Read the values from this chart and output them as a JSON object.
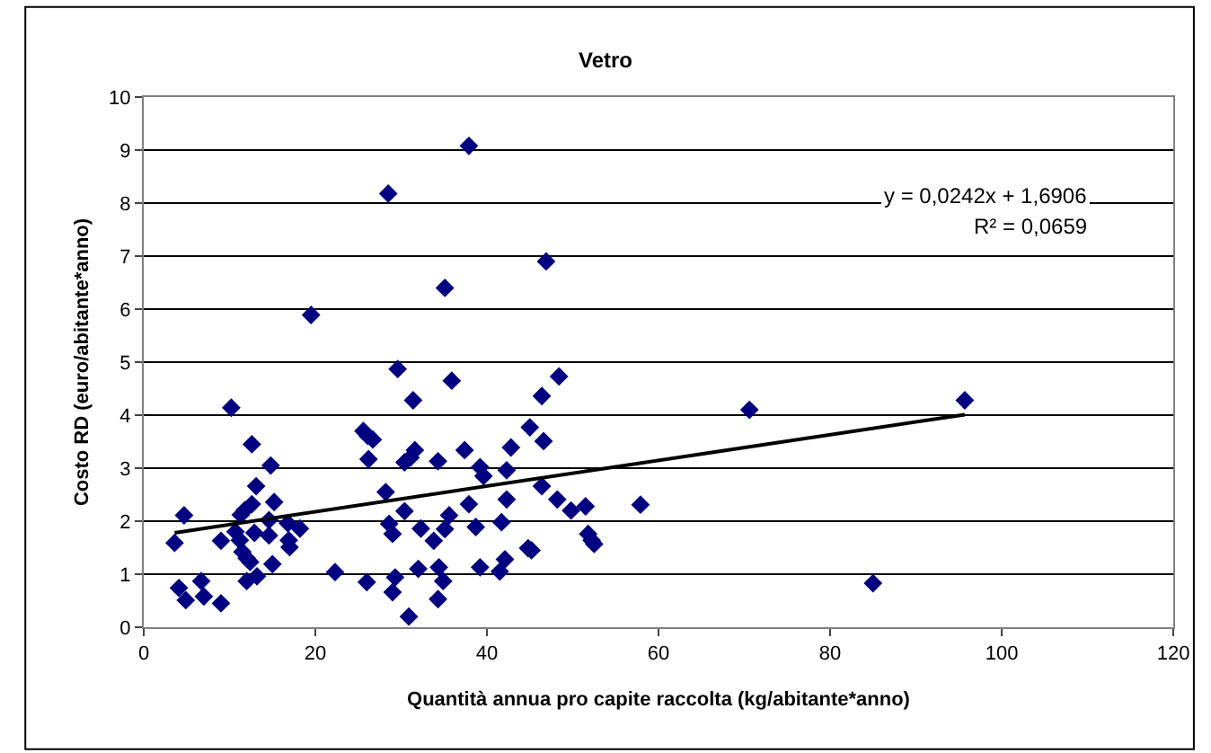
{
  "chart_data": {
    "type": "scatter",
    "title": "Vetro",
    "xlabel": "Quantità annua pro capite raccolta (kg/abitante*anno)",
    "ylabel": "Costo RD (euro/abitante*anno)",
    "xlim": [
      0,
      120
    ],
    "xticks": [
      0,
      20,
      40,
      60,
      80,
      100,
      120
    ],
    "ylim": [
      0,
      10
    ],
    "yticks": [
      0,
      1,
      2,
      3,
      4,
      5,
      6,
      7,
      8,
      9,
      10
    ],
    "grid": "y",
    "marker": "diamond",
    "annotations": [
      "y = 0,0242x + 1,6906",
      "R² = 0,0659"
    ],
    "series": [
      {
        "color": "#000080",
        "x": [
          3.6,
          4.7,
          4.1,
          4.9,
          6.7,
          7.0,
          9.0,
          9.0,
          10.2,
          10.7,
          11.2,
          11.3,
          11.8,
          11.5,
          12.0,
          12.4,
          12.0,
          12.6,
          12.6,
          12.9,
          13.1,
          13.2,
          14.6,
          14.8,
          14.6,
          15.2,
          15.0,
          16.8,
          16.9,
          17.0,
          18.2,
          19.5,
          22.3,
          25.6,
          26.1,
          26.7,
          26.2,
          26.0,
          28.2,
          28.5,
          28.6,
          29.0,
          29.3,
          29.0,
          29.6,
          37.9,
          46.9,
          35.1,
          35.9,
          31.4,
          30.4,
          31.1,
          31.6,
          30.4,
          32.3,
          33.8,
          32.0,
          30.9,
          34.3,
          34.4,
          34.9,
          34.3,
          35.1,
          35.6,
          37.4,
          37.9,
          38.7,
          39.2,
          39.2,
          39.6,
          42.3,
          42.3,
          41.7,
          41.5,
          42.1,
          42.8,
          45.0,
          46.6,
          46.4,
          48.4,
          46.4,
          48.2,
          49.8,
          51.5,
          51.8,
          52.2,
          52.5,
          44.8,
          45.2,
          57.9,
          70.6,
          85.0,
          95.7
        ],
        "values": [
          1.59,
          2.11,
          0.74,
          0.51,
          0.87,
          0.58,
          0.45,
          1.63,
          4.14,
          1.8,
          1.64,
          2.12,
          2.21,
          1.42,
          1.3,
          1.23,
          0.87,
          3.45,
          2.32,
          1.78,
          2.66,
          0.96,
          2.02,
          3.05,
          1.73,
          2.36,
          1.19,
          1.96,
          1.64,
          1.51,
          1.86,
          5.89,
          1.04,
          3.7,
          3.61,
          3.54,
          3.17,
          0.85,
          2.55,
          8.18,
          1.95,
          1.76,
          0.94,
          0.66,
          4.87,
          9.08,
          6.9,
          6.4,
          4.65,
          4.28,
          3.11,
          3.2,
          3.34,
          2.19,
          1.86,
          1.63,
          1.1,
          0.2,
          3.13,
          1.13,
          0.87,
          0.53,
          1.85,
          2.11,
          3.34,
          2.32,
          1.89,
          1.13,
          3.02,
          2.85,
          2.96,
          2.41,
          1.98,
          1.05,
          1.28,
          3.39,
          3.77,
          3.51,
          4.36,
          4.73,
          2.66,
          2.41,
          2.2,
          2.28,
          1.76,
          1.64,
          1.57,
          1.49,
          1.45,
          2.31,
          4.1,
          0.83,
          4.28
        ]
      },
      {
        "type": "line",
        "color": "#000000",
        "x": [
          3.6,
          95.7
        ],
        "values": [
          1.78,
          4.01
        ],
        "marker": "none",
        "line_style": "solid"
      }
    ]
  }
}
